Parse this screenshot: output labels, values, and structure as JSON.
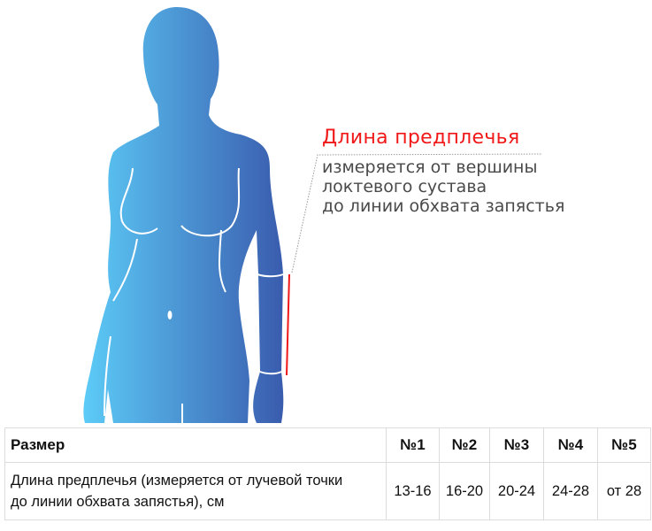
{
  "annotation": {
    "title": "Длина предплечья",
    "lines": [
      "измеряется от вершины",
      "локтевого сустава",
      "до линии обхвата запястья"
    ],
    "title_color": "#f01818"
  },
  "figure": {
    "gradient": [
      "#5ccbf7",
      "#3a5cae"
    ],
    "measure_color": "#f01818"
  },
  "table": {
    "header": [
      "Размер",
      "№1",
      "№2",
      "№3",
      "№4",
      "№5"
    ],
    "row": {
      "label_lines": [
        "Длина предплечья (измеряется от лучевой точки",
        "до линии обхвата запястья), см"
      ],
      "values": [
        "13-16",
        "16-20",
        "20-24",
        "24-28",
        "от 28"
      ]
    }
  }
}
